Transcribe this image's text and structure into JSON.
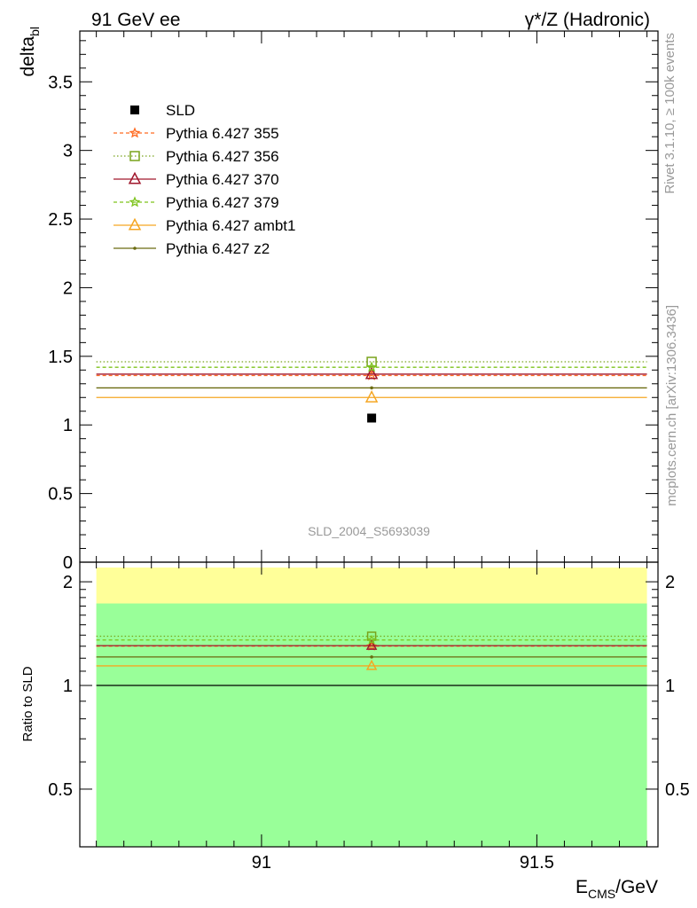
{
  "header": {
    "left": "91 GeV ee",
    "right": "γ*/Z (Hadronic)"
  },
  "side": {
    "rivet": "Rivet 3.1.10, ≥ 100k events",
    "mcplots": "mcplots.cern.ch [arXiv:1306.3436]"
  },
  "watermark": "SLD_2004_S5693039",
  "chart_data": [
    {
      "type": "scatter",
      "panel": "main",
      "ylabel": "delta",
      "ylabel_sub": "bl",
      "xlim": [
        90.67,
        91.72
      ],
      "ylim": [
        0,
        3.87
      ],
      "yticks": [
        0,
        0.5,
        1,
        1.5,
        2,
        2.5,
        3,
        3.5
      ],
      "ytick_labels": [
        "0",
        "0.5",
        "1",
        "1.5",
        "2",
        "2.5",
        "3",
        "3.5"
      ],
      "xrange": [
        90.7,
        91.7
      ],
      "x": 91.2,
      "data": {
        "name": "SLD",
        "value": 1.05,
        "color": "#000000"
      },
      "series": [
        {
          "name": "Pythia 6.427 355",
          "value": 1.36,
          "color": "#ff6a20",
          "dash": "4,3",
          "marker": "star"
        },
        {
          "name": "Pythia 6.427 356",
          "value": 1.46,
          "color": "#79a31c",
          "dash": "1.5,2.5",
          "marker": "square"
        },
        {
          "name": "Pythia 6.427 370",
          "value": 1.37,
          "color": "#a0172c",
          "dash": "",
          "marker": "triangle"
        },
        {
          "name": "Pythia 6.427 379",
          "value": 1.42,
          "color": "#7dc31c",
          "dash": "4,3",
          "marker": "star"
        },
        {
          "name": "Pythia 6.427 ambt1",
          "value": 1.2,
          "color": "#f5a623",
          "dash": "",
          "marker": "triangle"
        },
        {
          "name": "Pythia 6.427 z2",
          "value": 1.27,
          "color": "#6b6b10",
          "dash": "",
          "marker": "dot"
        }
      ],
      "legend": "top-left"
    },
    {
      "type": "scatter",
      "panel": "ratio",
      "ylabel": "Ratio to SLD",
      "xlabel": "E",
      "xlabel_sub": "CMS",
      "xlabel_unit": "/GeV",
      "xlim": [
        90.67,
        91.72
      ],
      "ylim": [
        0.34,
        2.28
      ],
      "xticks": [
        91,
        91.5
      ],
      "xtick_labels": [
        "91",
        "91.5"
      ],
      "yticks": [
        0.5,
        1,
        2
      ],
      "ytick_labels": [
        "0.5",
        "1",
        "2"
      ],
      "bands": [
        {
          "from": 0.34,
          "to": 2.2,
          "color": "#ffff99"
        },
        {
          "from": 0.34,
          "to": 1.73,
          "color": "#99ff99"
        }
      ],
      "reference": 1,
      "ratios": [
        1.3,
        1.39,
        1.305,
        1.355,
        1.14,
        1.21
      ]
    }
  ]
}
